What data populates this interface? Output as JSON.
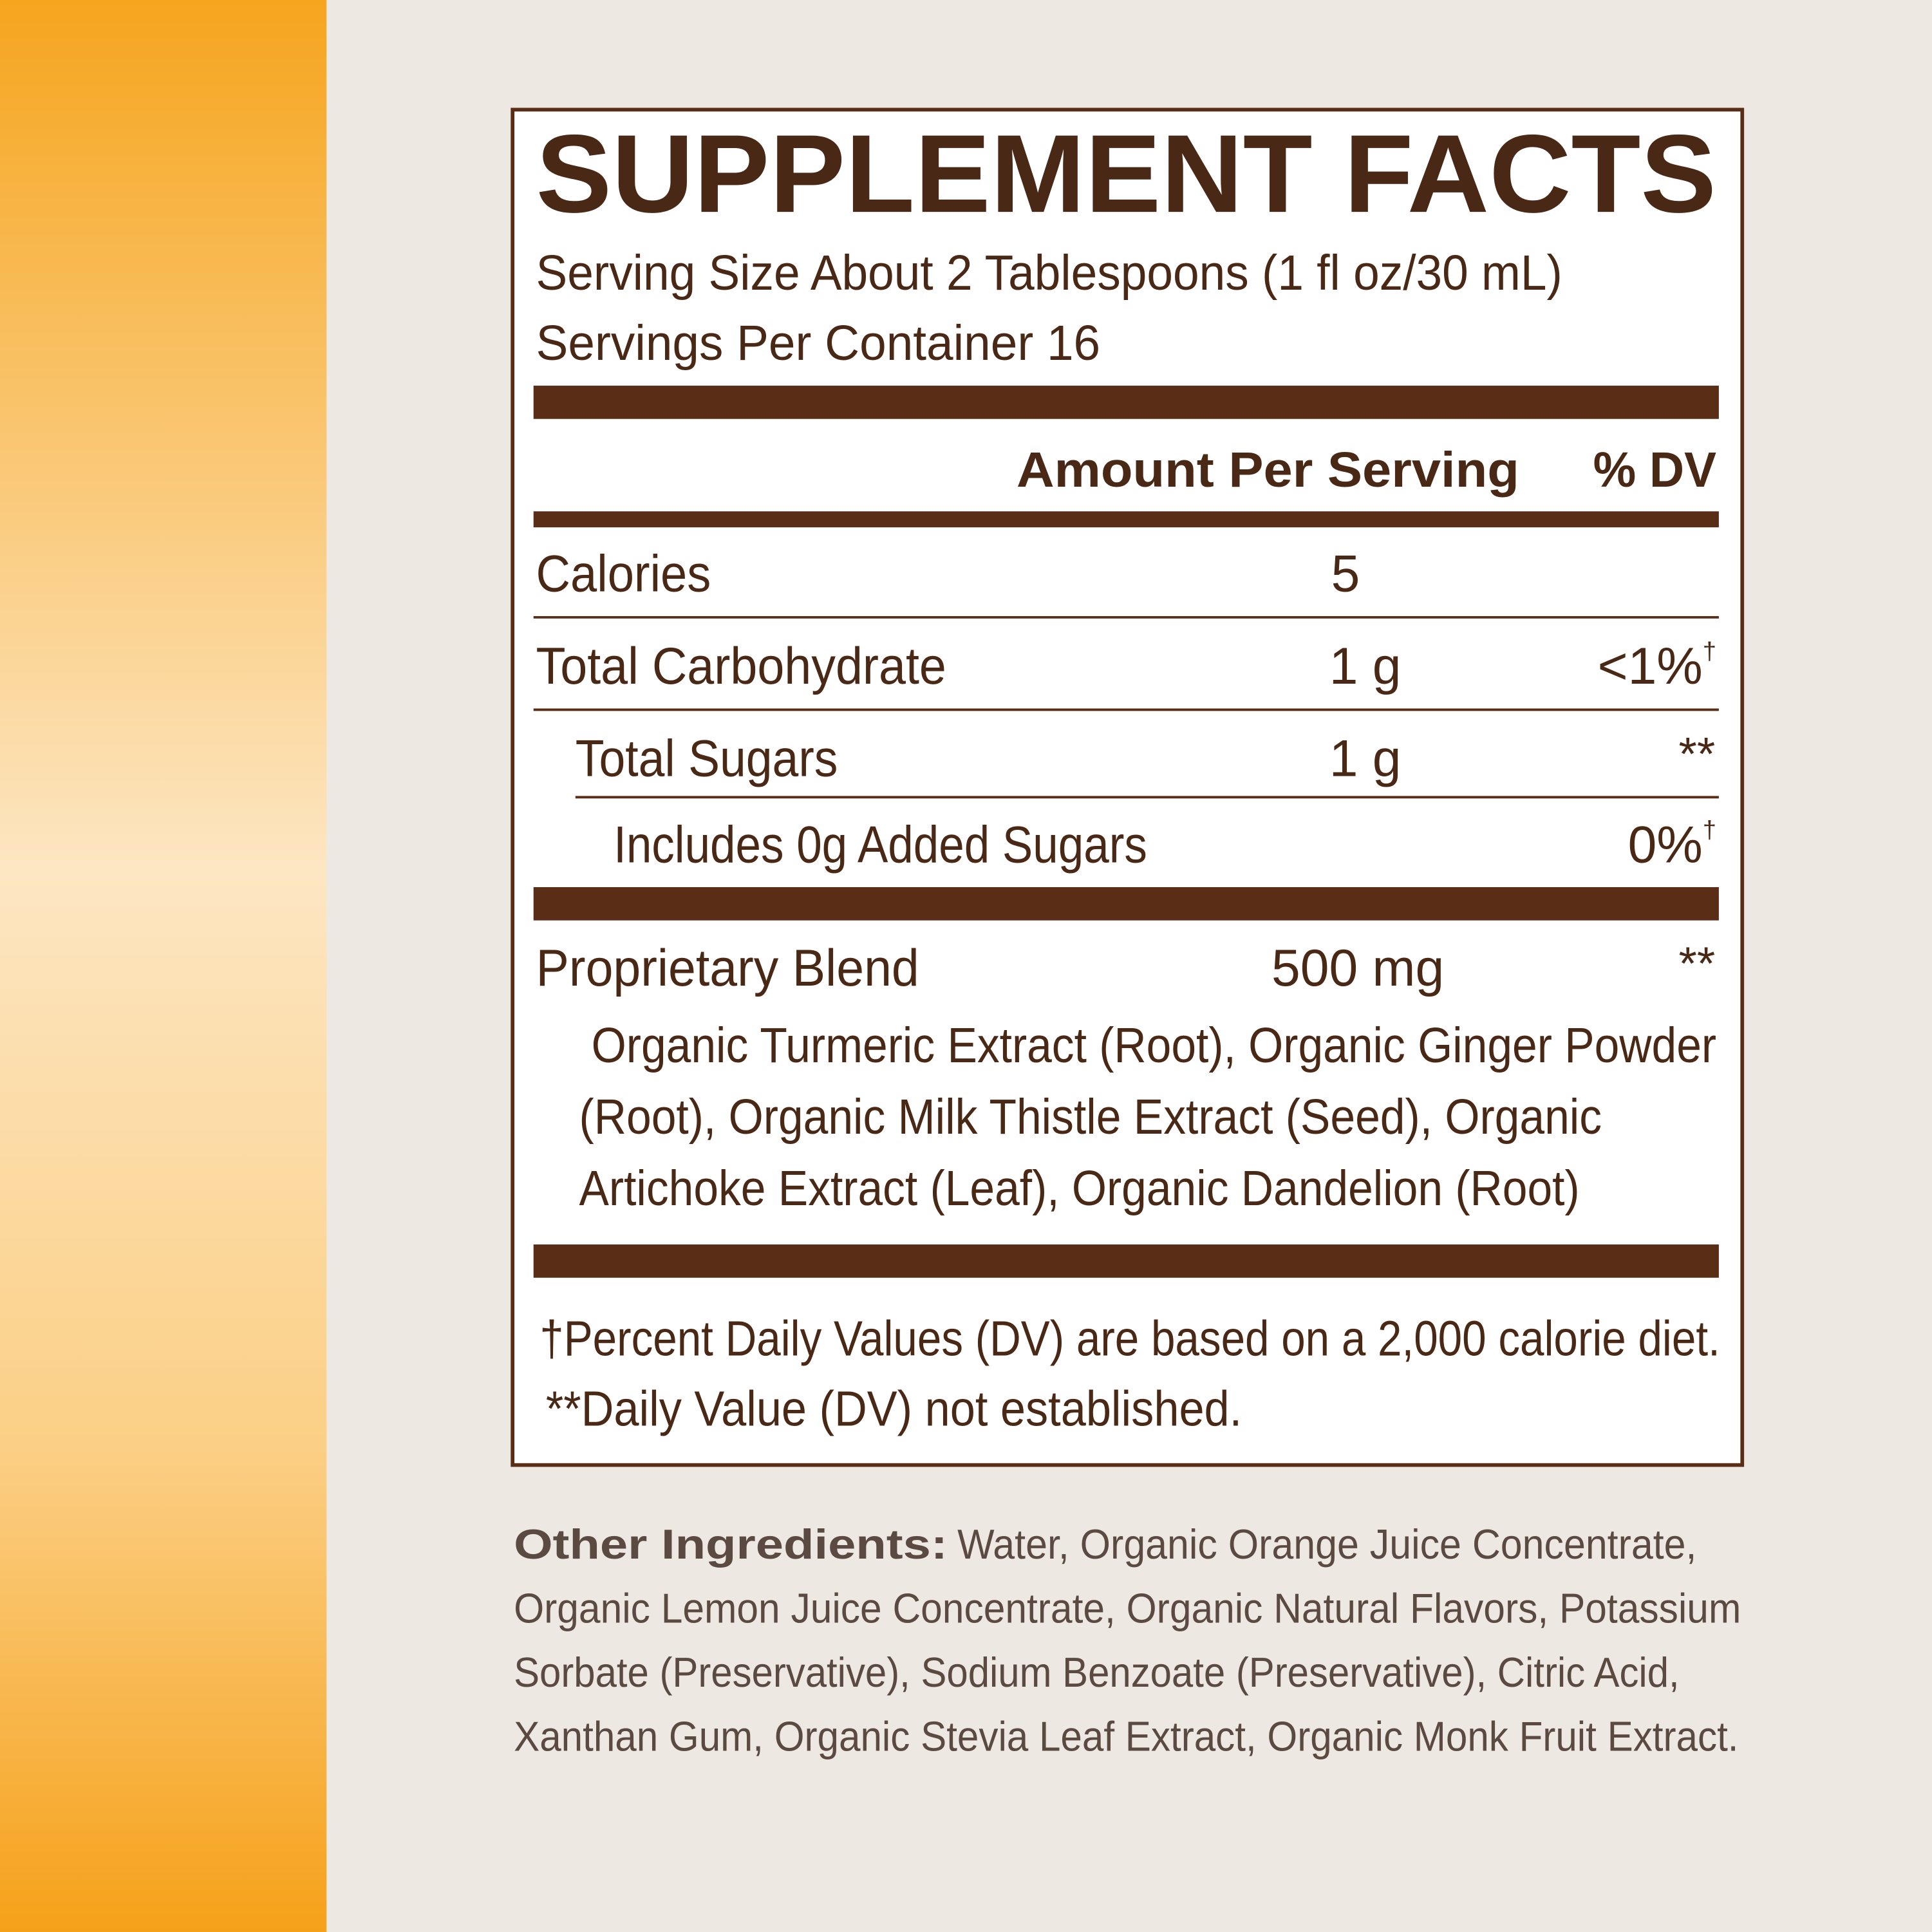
{
  "header": {
    "title": "SUPPLEMENT FACTS",
    "serving_size": "Serving Size About 2 Tablespoons (1 fl oz/30 mL)",
    "servings_per_container": "Servings Per Container 16"
  },
  "table": {
    "columns": [
      "Amount Per Serving",
      "% DV"
    ],
    "rows": [
      {
        "name": "Calories",
        "amount": "5"
      },
      {
        "name": "Total Carbohydrate",
        "amount": "1 g",
        "dv": "<1%",
        "mark": "†"
      },
      {
        "name": "Total Sugars",
        "amount": "1 g",
        "dv": "**"
      },
      {
        "name": "Includes 0g Added Sugars",
        "dv": "0%",
        "mark": "†"
      },
      {
        "name": "Proprietary Blend",
        "amount": "500 mg",
        "dv": "**"
      }
    ],
    "blend_ingredients": [
      "Organic Turmeric Extract (Root), Organic Ginger Powder",
      "(Root), Organic Milk Thistle Extract (Seed), Organic",
      "Artichoke Extract (Leaf), Organic Dandelion (Root)"
    ]
  },
  "footnotes": [
    "†Percent Daily Values (DV) are based on a 2,000 calorie diet.",
    "**Daily Value (DV) not established."
  ],
  "other_ingredients": {
    "label": "Other Ingredients:",
    "lines": [
      "Water, Organic Orange Juice Concentrate,",
      "Organic Lemon Juice Concentrate, Organic Natural Flavors, Potassium",
      "Sorbate (Preservative), Sodium Benzoate (Preservative), Citric Acid,",
      "Xanthan Gum, Organic Stevia Leaf Extract, Organic Monk Fruit Extract."
    ]
  }
}
